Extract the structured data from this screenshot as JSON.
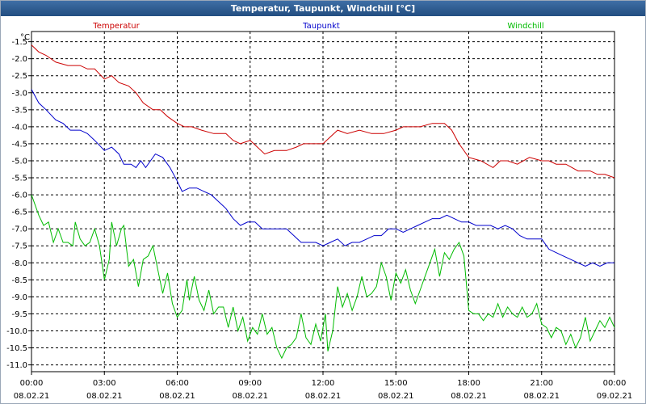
{
  "window": {
    "title": "Temperatur, Taupunkt, Windchill [°C]"
  },
  "chart_data": {
    "type": "line",
    "title": "Temperatur, Taupunkt, Windchill [°C]",
    "ylabel": "°C",
    "xlabel": "",
    "ylim": [
      -11.2,
      -1.2
    ],
    "xlim": [
      0,
      24
    ],
    "grid": true,
    "legend_position": "top",
    "y_ticks": [
      "-1.5",
      "-2.0",
      "-2.5",
      "-3.0",
      "-3.5",
      "-4.0",
      "-4.5",
      "-5.0",
      "-5.5",
      "-6.0",
      "-6.5",
      "-7.0",
      "-7.5",
      "-8.0",
      "-8.5",
      "-9.0",
      "-9.5",
      "-10.0",
      "-10.5",
      "-11.0"
    ],
    "x_ticks": [
      {
        "time": "00:00",
        "date": "08.02.21"
      },
      {
        "time": "03:00",
        "date": "08.02.21"
      },
      {
        "time": "06:00",
        "date": "08.02.21"
      },
      {
        "time": "09:00",
        "date": "08.02.21"
      },
      {
        "time": "12:00",
        "date": "08.02.21"
      },
      {
        "time": "15:00",
        "date": "08.02.21"
      },
      {
        "time": "18:00",
        "date": "08.02.21"
      },
      {
        "time": "21:00",
        "date": "08.02.21"
      },
      {
        "time": "00:00",
        "date": "09.02.21"
      }
    ],
    "series": [
      {
        "name": "Temperatur",
        "color": "#cc0000",
        "points": [
          [
            0,
            -1.6
          ],
          [
            0.3,
            -1.8
          ],
          [
            0.6,
            -1.9
          ],
          [
            1,
            -2.1
          ],
          [
            1.5,
            -2.2
          ],
          [
            2,
            -2.2
          ],
          [
            2.3,
            -2.3
          ],
          [
            2.6,
            -2.3
          ],
          [
            3,
            -2.6
          ],
          [
            3.3,
            -2.5
          ],
          [
            3.6,
            -2.7
          ],
          [
            4,
            -2.8
          ],
          [
            4.3,
            -3.0
          ],
          [
            4.6,
            -3.3
          ],
          [
            5,
            -3.5
          ],
          [
            5.3,
            -3.5
          ],
          [
            5.6,
            -3.7
          ],
          [
            6,
            -3.9
          ],
          [
            6.3,
            -4.0
          ],
          [
            6.6,
            -4.0
          ],
          [
            7,
            -4.1
          ],
          [
            7.5,
            -4.2
          ],
          [
            8,
            -4.2
          ],
          [
            8.3,
            -4.4
          ],
          [
            8.6,
            -4.5
          ],
          [
            9,
            -4.4
          ],
          [
            9.3,
            -4.6
          ],
          [
            9.6,
            -4.8
          ],
          [
            10,
            -4.7
          ],
          [
            10.5,
            -4.7
          ],
          [
            10.9,
            -4.6
          ],
          [
            11.2,
            -4.5
          ],
          [
            11.6,
            -4.5
          ],
          [
            12,
            -4.5
          ],
          [
            12.3,
            -4.3
          ],
          [
            12.6,
            -4.1
          ],
          [
            13,
            -4.2
          ],
          [
            13.5,
            -4.1
          ],
          [
            14,
            -4.2
          ],
          [
            14.5,
            -4.2
          ],
          [
            15,
            -4.1
          ],
          [
            15.3,
            -4.0
          ],
          [
            15.6,
            -4.0
          ],
          [
            16,
            -4.0
          ],
          [
            16.5,
            -3.9
          ],
          [
            17,
            -3.9
          ],
          [
            17.3,
            -4.1
          ],
          [
            17.6,
            -4.5
          ],
          [
            18,
            -4.9
          ],
          [
            18.5,
            -5.0
          ],
          [
            19,
            -5.2
          ],
          [
            19.3,
            -5.0
          ],
          [
            19.6,
            -5.0
          ],
          [
            20,
            -5.1
          ],
          [
            20.5,
            -4.9
          ],
          [
            21,
            -5.0
          ],
          [
            21.3,
            -5.0
          ],
          [
            21.6,
            -5.1
          ],
          [
            22,
            -5.1
          ],
          [
            22.5,
            -5.3
          ],
          [
            23,
            -5.3
          ],
          [
            23.3,
            -5.4
          ],
          [
            23.6,
            -5.4
          ],
          [
            24,
            -5.5
          ]
        ]
      },
      {
        "name": "Taupunkt",
        "color": "#0000cc",
        "points": [
          [
            0,
            -2.9
          ],
          [
            0.3,
            -3.3
          ],
          [
            0.6,
            -3.5
          ],
          [
            1,
            -3.8
          ],
          [
            1.3,
            -3.9
          ],
          [
            1.6,
            -4.1
          ],
          [
            2,
            -4.1
          ],
          [
            2.3,
            -4.2
          ],
          [
            2.6,
            -4.4
          ],
          [
            3,
            -4.7
          ],
          [
            3.3,
            -4.6
          ],
          [
            3.6,
            -4.8
          ],
          [
            3.8,
            -5.1
          ],
          [
            4.1,
            -5.1
          ],
          [
            4.3,
            -5.2
          ],
          [
            4.5,
            -5.0
          ],
          [
            4.7,
            -5.2
          ],
          [
            4.9,
            -5.0
          ],
          [
            5.1,
            -4.8
          ],
          [
            5.4,
            -4.9
          ],
          [
            5.7,
            -5.2
          ],
          [
            6,
            -5.6
          ],
          [
            6.2,
            -5.9
          ],
          [
            6.5,
            -5.8
          ],
          [
            6.8,
            -5.8
          ],
          [
            7.1,
            -5.9
          ],
          [
            7.4,
            -6.0
          ],
          [
            7.7,
            -6.2
          ],
          [
            8,
            -6.4
          ],
          [
            8.3,
            -6.7
          ],
          [
            8.6,
            -6.9
          ],
          [
            8.9,
            -6.8
          ],
          [
            9.2,
            -6.8
          ],
          [
            9.5,
            -7.0
          ],
          [
            9.8,
            -7.0
          ],
          [
            10.2,
            -7.0
          ],
          [
            10.5,
            -7.0
          ],
          [
            10.8,
            -7.2
          ],
          [
            11.1,
            -7.4
          ],
          [
            11.4,
            -7.4
          ],
          [
            11.7,
            -7.4
          ],
          [
            12,
            -7.5
          ],
          [
            12.3,
            -7.4
          ],
          [
            12.6,
            -7.3
          ],
          [
            12.9,
            -7.5
          ],
          [
            13.2,
            -7.4
          ],
          [
            13.5,
            -7.4
          ],
          [
            13.8,
            -7.3
          ],
          [
            14.1,
            -7.2
          ],
          [
            14.4,
            -7.2
          ],
          [
            14.7,
            -7.0
          ],
          [
            15,
            -7.0
          ],
          [
            15.3,
            -7.1
          ],
          [
            15.6,
            -7.0
          ],
          [
            15.9,
            -6.9
          ],
          [
            16.2,
            -6.8
          ],
          [
            16.5,
            -6.7
          ],
          [
            16.8,
            -6.7
          ],
          [
            17.1,
            -6.6
          ],
          [
            17.4,
            -6.7
          ],
          [
            17.7,
            -6.8
          ],
          [
            18,
            -6.8
          ],
          [
            18.3,
            -6.9
          ],
          [
            18.6,
            -6.9
          ],
          [
            18.9,
            -6.9
          ],
          [
            19.2,
            -7.0
          ],
          [
            19.5,
            -6.9
          ],
          [
            19.8,
            -7.0
          ],
          [
            20.1,
            -7.2
          ],
          [
            20.4,
            -7.3
          ],
          [
            20.7,
            -7.3
          ],
          [
            21,
            -7.3
          ],
          [
            21.3,
            -7.6
          ],
          [
            21.6,
            -7.7
          ],
          [
            21.9,
            -7.8
          ],
          [
            22.2,
            -7.9
          ],
          [
            22.5,
            -8.0
          ],
          [
            22.8,
            -8.1
          ],
          [
            23.1,
            -8.0
          ],
          [
            23.4,
            -8.1
          ],
          [
            23.7,
            -8.0
          ],
          [
            24,
            -8.0
          ]
        ]
      },
      {
        "name": "Windchill",
        "color": "#00bb00",
        "points": [
          [
            0,
            -6.0
          ],
          [
            0.3,
            -6.6
          ],
          [
            0.5,
            -6.9
          ],
          [
            0.7,
            -6.8
          ],
          [
            0.9,
            -7.4
          ],
          [
            1.1,
            -7.0
          ],
          [
            1.3,
            -7.4
          ],
          [
            1.5,
            -7.4
          ],
          [
            1.7,
            -7.5
          ],
          [
            1.8,
            -6.8
          ],
          [
            2.0,
            -7.3
          ],
          [
            2.2,
            -7.5
          ],
          [
            2.4,
            -7.4
          ],
          [
            2.6,
            -7.0
          ],
          [
            2.8,
            -7.5
          ],
          [
            3.0,
            -8.5
          ],
          [
            3.2,
            -7.9
          ],
          [
            3.3,
            -6.8
          ],
          [
            3.5,
            -7.5
          ],
          [
            3.7,
            -7.0
          ],
          [
            3.8,
            -6.9
          ],
          [
            4.0,
            -8.1
          ],
          [
            4.2,
            -7.9
          ],
          [
            4.4,
            -8.7
          ],
          [
            4.6,
            -7.9
          ],
          [
            4.8,
            -7.8
          ],
          [
            5.0,
            -7.5
          ],
          [
            5.2,
            -8.2
          ],
          [
            5.4,
            -8.9
          ],
          [
            5.6,
            -8.3
          ],
          [
            5.8,
            -9.2
          ],
          [
            6.0,
            -9.6
          ],
          [
            6.2,
            -9.4
          ],
          [
            6.4,
            -8.5
          ],
          [
            6.5,
            -9.1
          ],
          [
            6.7,
            -8.4
          ],
          [
            6.9,
            -9.1
          ],
          [
            7.1,
            -9.4
          ],
          [
            7.3,
            -8.8
          ],
          [
            7.5,
            -9.5
          ],
          [
            7.7,
            -9.3
          ],
          [
            7.9,
            -9.3
          ],
          [
            8.1,
            -9.9
          ],
          [
            8.3,
            -9.3
          ],
          [
            8.5,
            -10.0
          ],
          [
            8.7,
            -9.6
          ],
          [
            8.9,
            -10.3
          ],
          [
            9.1,
            -9.9
          ],
          [
            9.3,
            -10.1
          ],
          [
            9.5,
            -9.5
          ],
          [
            9.7,
            -10.1
          ],
          [
            9.9,
            -9.9
          ],
          [
            10.1,
            -10.5
          ],
          [
            10.3,
            -10.8
          ],
          [
            10.5,
            -10.5
          ],
          [
            10.7,
            -10.4
          ],
          [
            10.9,
            -10.2
          ],
          [
            11.1,
            -9.5
          ],
          [
            11.3,
            -10.2
          ],
          [
            11.5,
            -10.4
          ],
          [
            11.7,
            -9.8
          ],
          [
            11.9,
            -10.3
          ],
          [
            12.1,
            -9.5
          ],
          [
            12.2,
            -10.6
          ],
          [
            12.4,
            -10.0
          ],
          [
            12.6,
            -8.7
          ],
          [
            12.8,
            -9.3
          ],
          [
            13.0,
            -8.9
          ],
          [
            13.2,
            -9.4
          ],
          [
            13.4,
            -9.0
          ],
          [
            13.6,
            -8.4
          ],
          [
            13.8,
            -9.0
          ],
          [
            14.0,
            -8.9
          ],
          [
            14.2,
            -8.7
          ],
          [
            14.4,
            -8.0
          ],
          [
            14.6,
            -8.4
          ],
          [
            14.8,
            -9.1
          ],
          [
            15.0,
            -8.3
          ],
          [
            15.2,
            -8.6
          ],
          [
            15.4,
            -8.2
          ],
          [
            15.6,
            -8.8
          ],
          [
            15.8,
            -9.2
          ],
          [
            16.0,
            -8.8
          ],
          [
            16.2,
            -8.4
          ],
          [
            16.4,
            -8.0
          ],
          [
            16.6,
            -7.6
          ],
          [
            16.8,
            -8.4
          ],
          [
            17.0,
            -7.7
          ],
          [
            17.2,
            -7.9
          ],
          [
            17.4,
            -7.6
          ],
          [
            17.6,
            -7.4
          ],
          [
            17.8,
            -7.8
          ],
          [
            18.0,
            -9.4
          ],
          [
            18.2,
            -9.5
          ],
          [
            18.4,
            -9.5
          ],
          [
            18.6,
            -9.7
          ],
          [
            18.8,
            -9.5
          ],
          [
            19.0,
            -9.6
          ],
          [
            19.2,
            -9.2
          ],
          [
            19.4,
            -9.6
          ],
          [
            19.6,
            -9.3
          ],
          [
            19.8,
            -9.5
          ],
          [
            20.0,
            -9.6
          ],
          [
            20.2,
            -9.3
          ],
          [
            20.4,
            -9.6
          ],
          [
            20.6,
            -9.5
          ],
          [
            20.8,
            -9.2
          ],
          [
            21.0,
            -9.8
          ],
          [
            21.2,
            -9.9
          ],
          [
            21.4,
            -10.2
          ],
          [
            21.6,
            -9.9
          ],
          [
            21.8,
            -10.0
          ],
          [
            22.0,
            -10.4
          ],
          [
            22.2,
            -10.1
          ],
          [
            22.4,
            -10.5
          ],
          [
            22.6,
            -10.2
          ],
          [
            22.8,
            -9.6
          ],
          [
            23.0,
            -10.3
          ],
          [
            23.2,
            -10.0
          ],
          [
            23.4,
            -9.7
          ],
          [
            23.6,
            -9.9
          ],
          [
            23.8,
            -9.6
          ],
          [
            24,
            -9.9
          ]
        ]
      }
    ]
  }
}
